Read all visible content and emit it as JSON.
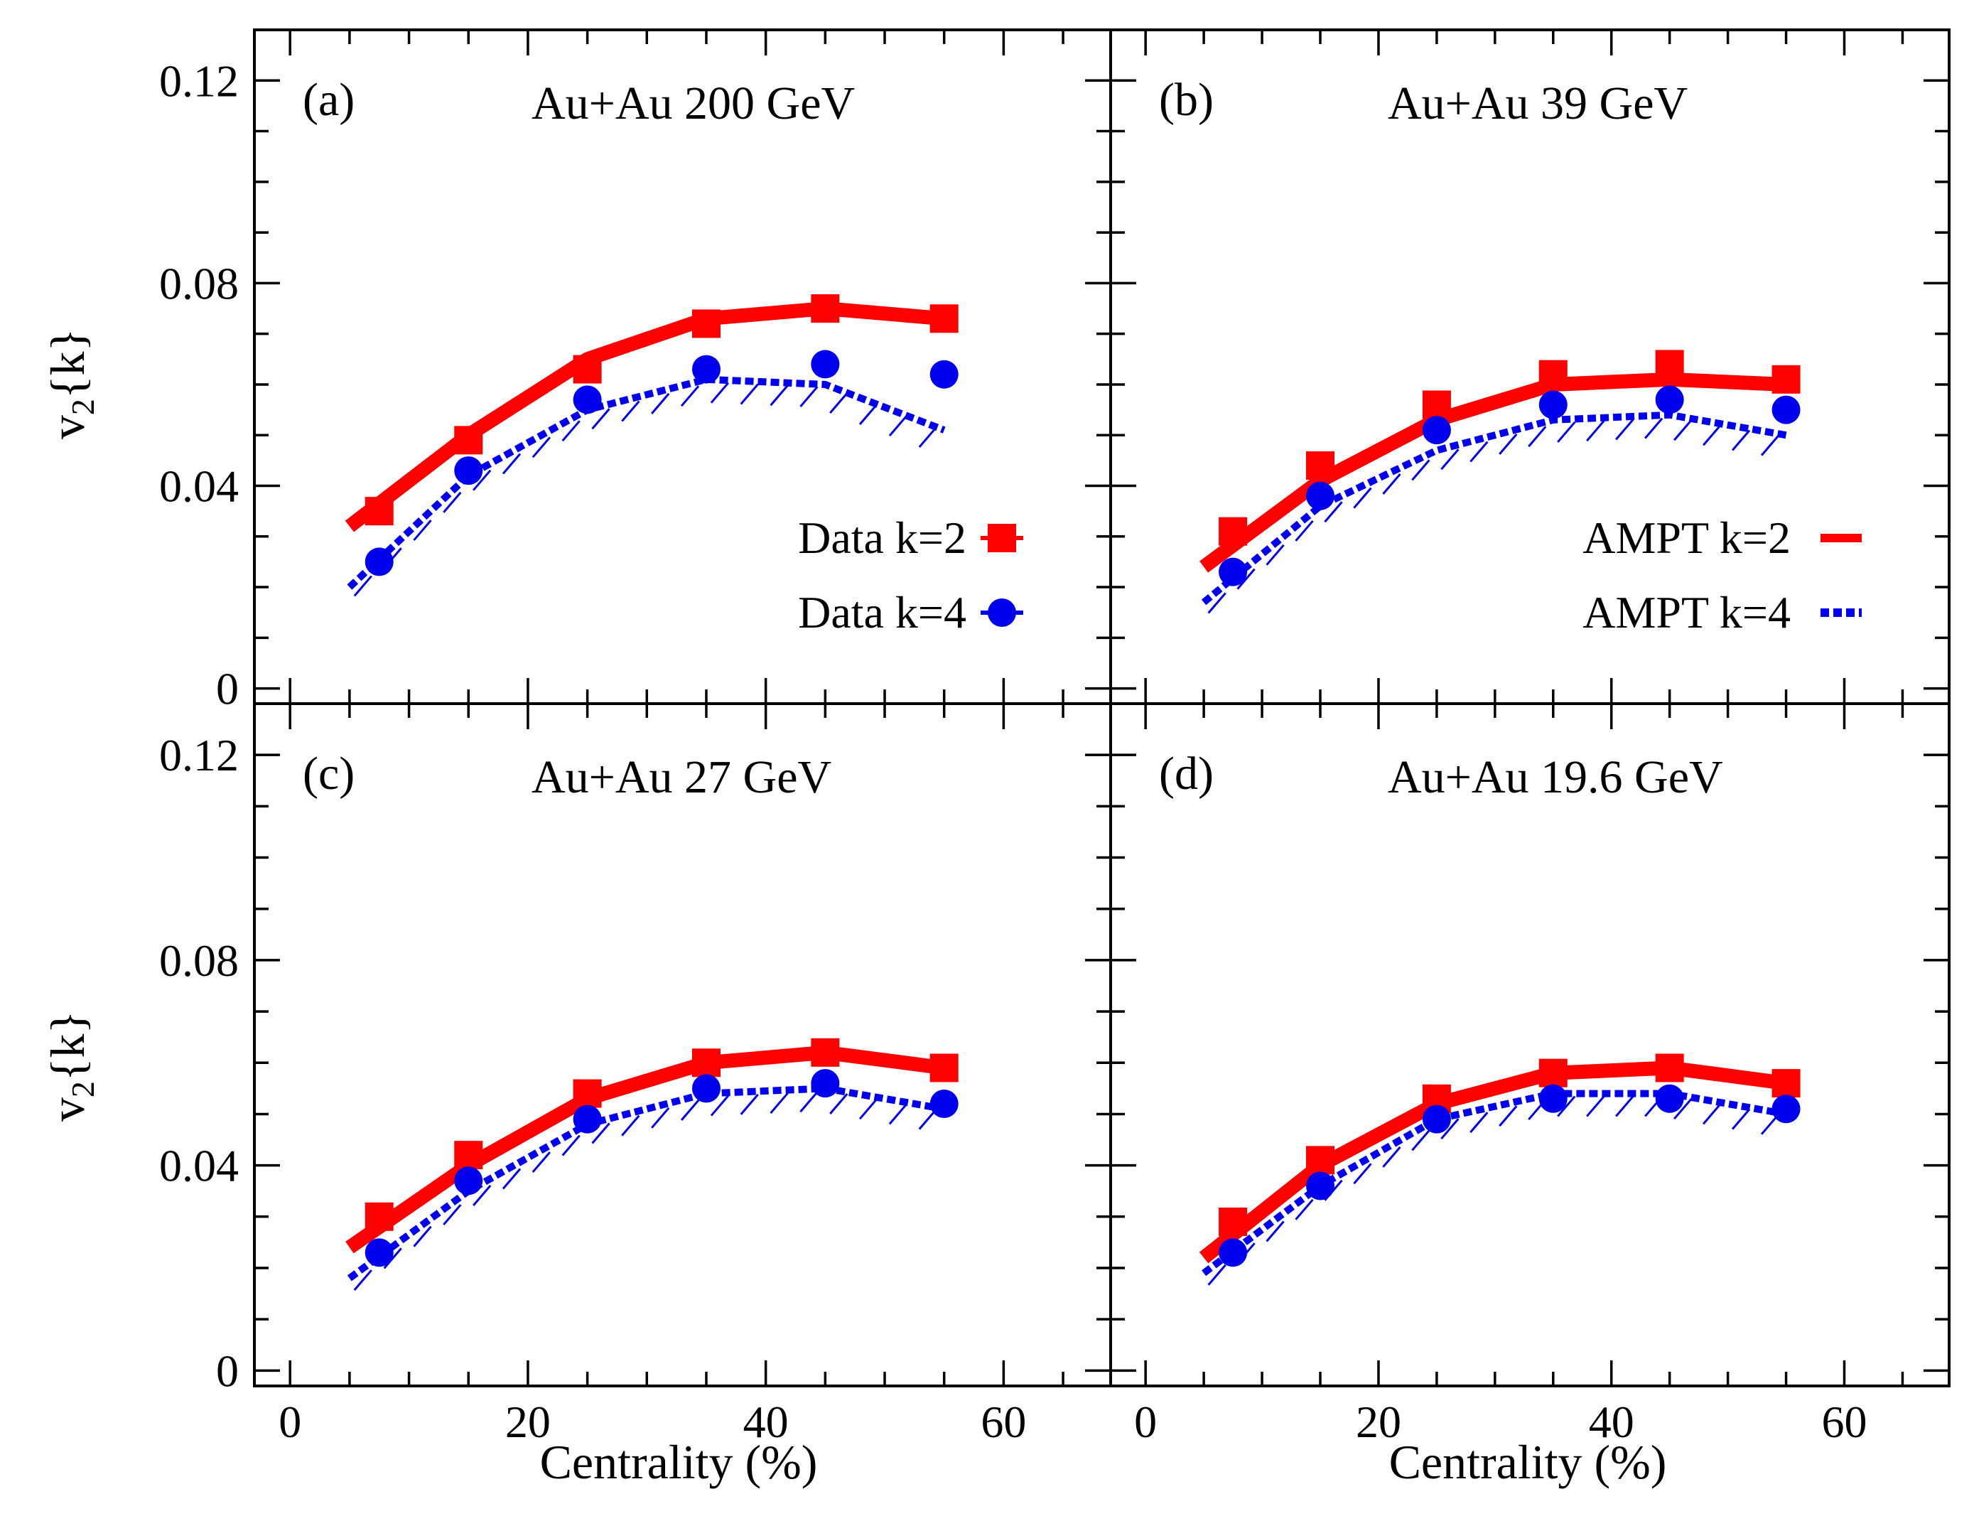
{
  "figure": {
    "ylabel_main": "v",
    "ylabel_sub": "2",
    "ylabel_suffix": "{k}",
    "xlabel": "Centrality (%)"
  },
  "legend": {
    "data_k2": "Data k=2",
    "data_k4": "Data k=4",
    "ampt_k2": "AMPT k=2",
    "ampt_k4": "AMPT k=4"
  },
  "colors": {
    "k2": "#ff0000",
    "k4": "#0000ee",
    "axes": "#000000"
  },
  "chart_data": [
    {
      "type": "scatter",
      "panel": "(a)",
      "title": "Au+Au 200 GeV",
      "xlim": [
        -3,
        69
      ],
      "ylim": [
        -0.003,
        0.13
      ],
      "xticks": [
        "0",
        "20",
        "40",
        "60"
      ],
      "yticks": [
        "0",
        "0.04",
        "0.08",
        "0.12"
      ],
      "data_k2": {
        "x": [
          7.5,
          15,
          25,
          35,
          45,
          55
        ],
        "y": [
          0.035,
          0.049,
          0.063,
          0.072,
          0.075,
          0.073
        ]
      },
      "data_k4": {
        "x": [
          7.5,
          15,
          25,
          35,
          45,
          55
        ],
        "y": [
          0.025,
          0.043,
          0.057,
          0.063,
          0.064,
          0.062
        ]
      },
      "ampt_k2": {
        "x": [
          5,
          15,
          25,
          35,
          45,
          55
        ],
        "y": [
          0.032,
          0.05,
          0.065,
          0.073,
          0.075,
          0.073
        ]
      },
      "ampt_k4": {
        "x": [
          5,
          15,
          25,
          35,
          45,
          55
        ],
        "y": [
          0.02,
          0.042,
          0.055,
          0.061,
          0.06,
          0.051
        ]
      }
    },
    {
      "type": "scatter",
      "panel": "(b)",
      "title": "Au+Au 39 GeV",
      "xlim": [
        -3,
        69
      ],
      "ylim": [
        -0.003,
        0.13
      ],
      "xticks": [
        "0",
        "20",
        "40",
        "60"
      ],
      "yticks": [
        "0",
        "0.04",
        "0.08",
        "0.12"
      ],
      "data_k2": {
        "x": [
          7.5,
          15,
          25,
          35,
          45,
          55
        ],
        "y": [
          0.031,
          0.044,
          0.056,
          0.062,
          0.064,
          0.061
        ]
      },
      "data_k4": {
        "x": [
          7.5,
          15,
          25,
          35,
          45,
          55
        ],
        "y": [
          0.023,
          0.038,
          0.051,
          0.056,
          0.057,
          0.055
        ]
      },
      "ampt_k2": {
        "x": [
          5,
          15,
          25,
          35,
          45,
          55
        ],
        "y": [
          0.024,
          0.041,
          0.053,
          0.06,
          0.061,
          0.06
        ]
      },
      "ampt_k4": {
        "x": [
          5,
          15,
          25,
          35,
          45,
          55
        ],
        "y": [
          0.017,
          0.036,
          0.047,
          0.053,
          0.054,
          0.05
        ]
      }
    },
    {
      "type": "scatter",
      "panel": "(c)",
      "title": "Au+Au 27 GeV",
      "xlim": [
        -3,
        69
      ],
      "ylim": [
        -0.003,
        0.13
      ],
      "xticks": [
        "0",
        "20",
        "40",
        "60"
      ],
      "yticks": [
        "0",
        "0.04",
        "0.08",
        "0.12"
      ],
      "data_k2": {
        "x": [
          7.5,
          15,
          25,
          35,
          45,
          55
        ],
        "y": [
          0.03,
          0.042,
          0.054,
          0.06,
          0.062,
          0.059
        ]
      },
      "data_k4": {
        "x": [
          7.5,
          15,
          25,
          35,
          45,
          55
        ],
        "y": [
          0.023,
          0.037,
          0.049,
          0.055,
          0.056,
          0.052
        ]
      },
      "ampt_k2": {
        "x": [
          5,
          15,
          25,
          35,
          45,
          55
        ],
        "y": [
          0.024,
          0.04,
          0.053,
          0.06,
          0.062,
          0.059
        ]
      },
      "ampt_k4": {
        "x": [
          5,
          15,
          25,
          35,
          45,
          55
        ],
        "y": [
          0.018,
          0.035,
          0.048,
          0.054,
          0.055,
          0.051
        ]
      }
    },
    {
      "type": "scatter",
      "panel": "(d)",
      "title": "Au+Au 19.6 GeV",
      "xlim": [
        -3,
        69
      ],
      "ylim": [
        -0.003,
        0.13
      ],
      "xticks": [
        "0",
        "20",
        "40",
        "60"
      ],
      "yticks": [
        "0",
        "0.04",
        "0.08",
        "0.12"
      ],
      "data_k2": {
        "x": [
          7.5,
          15,
          25,
          35,
          45,
          55
        ],
        "y": [
          0.029,
          0.041,
          0.053,
          0.058,
          0.059,
          0.056
        ]
      },
      "data_k4": {
        "x": [
          7.5,
          15,
          25,
          35,
          45,
          55
        ],
        "y": [
          0.023,
          0.036,
          0.049,
          0.053,
          0.053,
          0.051
        ]
      },
      "ampt_k2": {
        "x": [
          5,
          15,
          25,
          35,
          45,
          55
        ],
        "y": [
          0.022,
          0.04,
          0.052,
          0.058,
          0.059,
          0.056
        ]
      },
      "ampt_k4": {
        "x": [
          5,
          15,
          25,
          35,
          45,
          55
        ],
        "y": [
          0.019,
          0.036,
          0.049,
          0.054,
          0.054,
          0.05
        ]
      }
    }
  ]
}
